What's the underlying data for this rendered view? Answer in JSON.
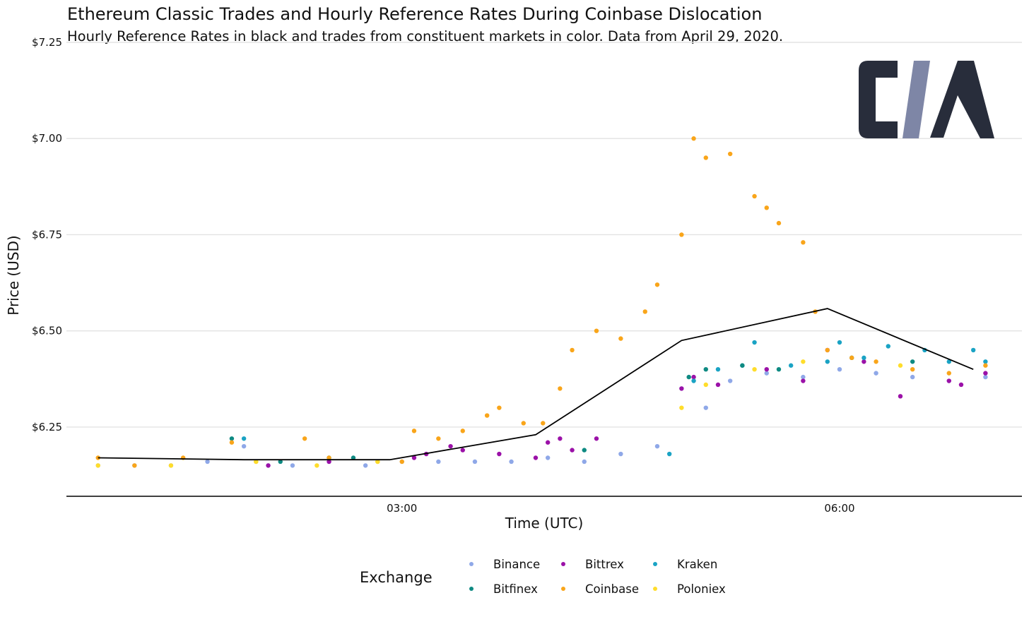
{
  "chart_data": {
    "type": "scatter",
    "title": "Ethereum Classic Trades and Hourly Reference Rates During Coinbase Dislocation",
    "subtitle": "Hourly Reference Rates in black and trades from constituent markets in color. Data from April 29, 2020.",
    "xlabel": "Time (UTC)",
    "ylabel": "Price (USD)",
    "x_ticks": [
      "03:00",
      "06:00"
    ],
    "y_ticks": [
      "$6.25",
      "$6.50",
      "$6.75",
      "$7.00",
      "$7.25"
    ],
    "xlim": [
      "00:42",
      "07:15"
    ],
    "ylim": [
      6.07,
      7.25
    ],
    "grid": "horizontal",
    "legend_title": "Exchange",
    "legend_position": "bottom",
    "logo_text": "CM",
    "reference_rate": {
      "name": "Hourly Reference Rate",
      "color": "#000000",
      "x": [
        "00:55",
        "01:55",
        "02:55",
        "03:55",
        "04:55",
        "05:55",
        "06:55"
      ],
      "y": [
        6.17,
        6.165,
        6.165,
        6.23,
        6.475,
        6.558,
        6.4
      ]
    },
    "series": [
      {
        "name": "Binance",
        "color": "#8FA8E8",
        "x": [
          "00:55",
          "01:10",
          "01:25",
          "01:40",
          "01:55",
          "02:05",
          "02:15",
          "02:30",
          "02:45",
          "03:00",
          "03:15",
          "03:30",
          "03:45",
          "04:00",
          "04:15",
          "04:30",
          "04:45",
          "04:55",
          "05:05",
          "05:15",
          "05:30",
          "05:45",
          "06:00",
          "06:15",
          "06:30",
          "06:45",
          "07:00"
        ],
        "y": [
          6.15,
          6.15,
          6.15,
          6.16,
          6.2,
          6.15,
          6.15,
          6.16,
          6.15,
          6.16,
          6.16,
          6.16,
          6.16,
          6.17,
          6.16,
          6.18,
          6.2,
          6.35,
          6.3,
          6.37,
          6.39,
          6.38,
          6.4,
          6.39,
          6.38,
          6.37,
          6.38
        ]
      },
      {
        "name": "Bittrex",
        "color": "#9B11A8",
        "x": [
          "02:05",
          "02:30",
          "03:05",
          "03:10",
          "03:20",
          "03:25",
          "03:40",
          "03:55",
          "04:00",
          "04:05",
          "04:10",
          "04:20",
          "04:55",
          "05:00",
          "05:10",
          "05:30",
          "05:45",
          "05:55",
          "06:10",
          "06:25",
          "06:45",
          "06:50",
          "07:00"
        ],
        "y": [
          6.15,
          6.16,
          6.17,
          6.18,
          6.2,
          6.19,
          6.18,
          6.17,
          6.21,
          6.22,
          6.19,
          6.22,
          6.35,
          6.38,
          6.36,
          6.4,
          6.37,
          6.45,
          6.42,
          6.33,
          6.37,
          6.36,
          6.39
        ]
      },
      {
        "name": "Kraken",
        "color": "#1AA3C4",
        "x": [
          "01:55",
          "02:30",
          "04:50",
          "05:00",
          "05:10",
          "05:20",
          "05:25",
          "05:40",
          "05:55",
          "06:00",
          "06:10",
          "06:20",
          "06:35",
          "06:45",
          "06:55",
          "07:00"
        ],
        "y": [
          6.22,
          6.17,
          6.18,
          6.37,
          6.4,
          6.41,
          6.47,
          6.41,
          6.42,
          6.47,
          6.43,
          6.46,
          6.45,
          6.42,
          6.45,
          6.42
        ]
      },
      {
        "name": "Bitfinex",
        "color": "#0E8A82",
        "x": [
          "01:50",
          "02:10",
          "02:40",
          "04:15",
          "04:58",
          "05:05",
          "05:20",
          "05:35",
          "06:05",
          "06:30"
        ],
        "y": [
          6.22,
          6.16,
          6.17,
          6.19,
          6.38,
          6.4,
          6.41,
          6.4,
          6.43,
          6.42
        ]
      },
      {
        "name": "Coinbase",
        "color": "#F9A51A",
        "x": [
          "00:55",
          "01:10",
          "01:30",
          "01:50",
          "02:00",
          "02:20",
          "02:30",
          "02:50",
          "03:00",
          "03:05",
          "03:15",
          "03:25",
          "03:35",
          "03:40",
          "03:50",
          "03:58",
          "04:05",
          "04:10",
          "04:20",
          "04:30",
          "04:40",
          "04:45",
          "04:55",
          "05:00",
          "05:05",
          "05:15",
          "05:25",
          "05:30",
          "05:35",
          "05:45",
          "05:50",
          "05:55",
          "06:05",
          "06:15",
          "06:30",
          "06:45",
          "07:00"
        ],
        "y": [
          6.17,
          6.15,
          6.17,
          6.21,
          6.16,
          6.22,
          6.17,
          6.16,
          6.16,
          6.24,
          6.22,
          6.24,
          6.28,
          6.3,
          6.26,
          6.26,
          6.35,
          6.45,
          6.5,
          6.48,
          6.55,
          6.62,
          6.75,
          7.0,
          6.95,
          6.96,
          6.85,
          6.82,
          6.78,
          6.73,
          6.55,
          6.45,
          6.43,
          6.42,
          6.4,
          6.39,
          6.41
        ]
      },
      {
        "name": "Poloniex",
        "color": "#FFDD2B",
        "x": [
          "00:55",
          "01:25",
          "02:00",
          "02:25",
          "02:50",
          "04:55",
          "05:05",
          "05:25",
          "05:45",
          "06:25"
        ],
        "y": [
          6.15,
          6.15,
          6.16,
          6.15,
          6.16,
          6.3,
          6.36,
          6.4,
          6.42,
          6.41
        ]
      }
    ]
  }
}
